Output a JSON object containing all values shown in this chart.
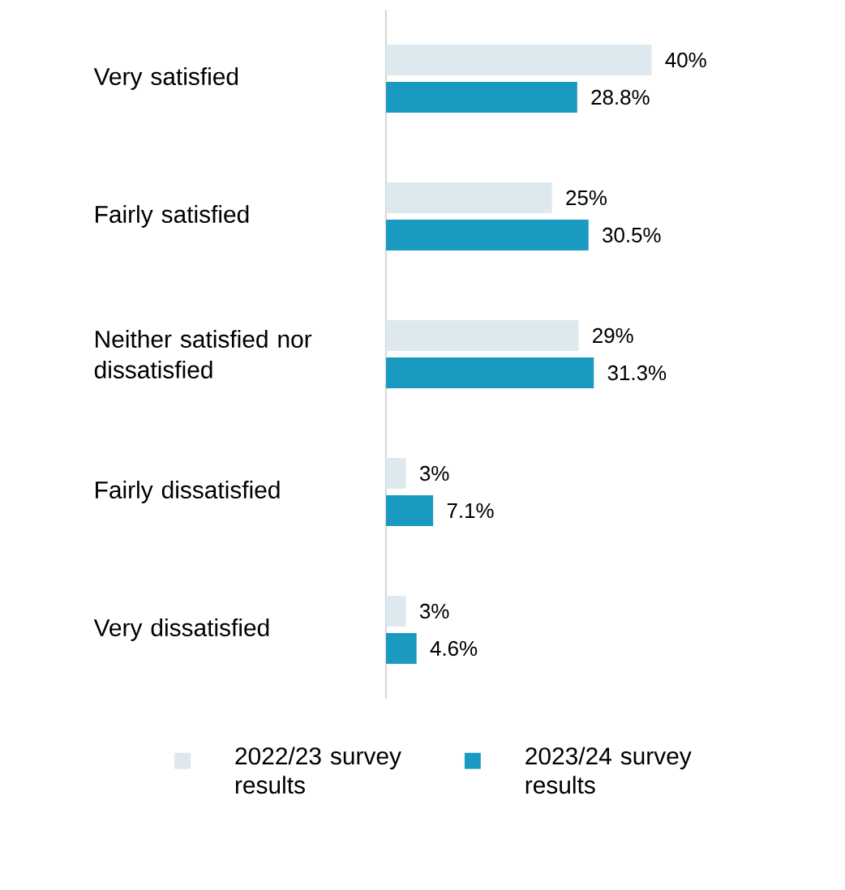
{
  "chart_data": {
    "type": "bar",
    "orientation": "horizontal",
    "categories": [
      "Very satisfied",
      "Fairly satisfied",
      "Neither satisfied nor dissatisfied",
      "Fairly dissatisfied",
      "Very dissatisfied"
    ],
    "series": [
      {
        "name": "2022/23 survey results",
        "color": "#dde9ef",
        "values": [
          40,
          25,
          29,
          3,
          3
        ],
        "value_labels": [
          "40%",
          "25%",
          "29%",
          "3%",
          "3%"
        ]
      },
      {
        "name": "2023/24 survey results",
        "color": "#1a9ac0",
        "values": [
          28.8,
          30.5,
          31.3,
          7.1,
          4.6
        ],
        "value_labels": [
          "28.8%",
          "30.5%",
          "31.3%",
          "7.1%",
          "4.6%"
        ]
      }
    ],
    "legend": "bottom"
  }
}
